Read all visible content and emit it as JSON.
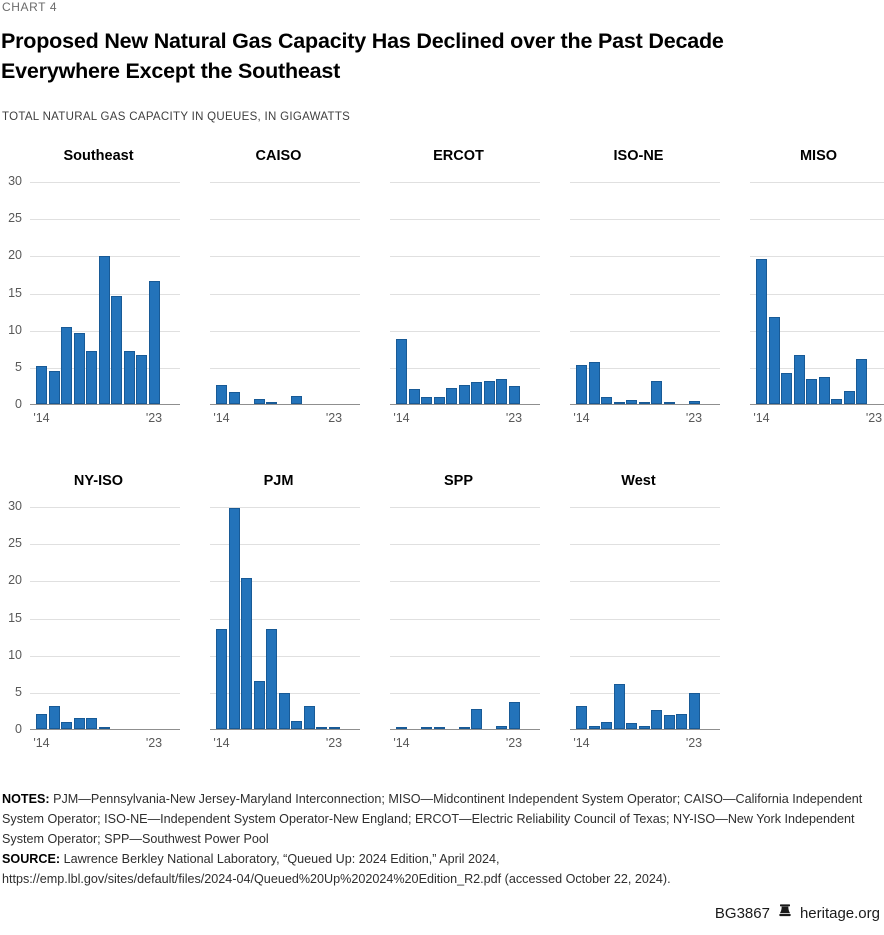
{
  "page": {
    "chart_label": "CHART 4",
    "title_line1": "Proposed New Natural Gas Capacity Has Declined over the Past Decade",
    "title_line2": "Everywhere Except the Southeast",
    "subtitle": "TOTAL NATURAL GAS CAPACITY IN QUEUES, IN GIGAWATTS",
    "notes_label": "NOTES:",
    "notes_text": "PJM—Pennsylvania-New Jersey-Maryland Interconnection; MISO—Midcontinent Independent System Operator; CAISO—California Independent System Operator; ISO-NE—Independent System Operator-New England; ERCOT—Electric Reliability Council of Texas; NY-ISO—New York Independent System Operator; SPP—Southwest Power Pool",
    "source_label": "SOURCE:",
    "source_line1": "Lawrence Berkley National Laboratory, “Queued Up: 2024 Edition,” April 2024,",
    "source_line2": "https://emp.lbl.gov/sites/default/files/2024-04/Queued%20Up%202024%20Edition_R2.pdf (accessed October 22, 2024).",
    "footer_id": "BG3867",
    "footer_site": "heritage.org",
    "footer_icon": "liberty-bell-icon"
  },
  "chart_data": {
    "type": "bar",
    "title": "Proposed New Natural Gas Capacity Has Declined over the Past Decade Everywhere Except the Southeast",
    "subtitle": "Total natural gas capacity in queues, in gigawatts",
    "units": "GW",
    "x": [
      2014,
      2015,
      2016,
      2017,
      2018,
      2019,
      2020,
      2021,
      2022,
      2023
    ],
    "x_tick_labels": [
      "'14",
      "'23"
    ],
    "ylim": [
      0,
      30
    ],
    "yticks": [
      30,
      25,
      20,
      15,
      10,
      5,
      0
    ],
    "grid": true,
    "legend": "none",
    "layout": "small-multiples, 5 panels top row, 4 panels bottom row",
    "bar_color": "#2373BA",
    "panels": [
      {
        "name": "Southeast",
        "values": [
          5.1,
          4.5,
          10.4,
          9.6,
          7.1,
          19.9,
          14.5,
          7.1,
          6.6,
          16.5
        ]
      },
      {
        "name": "CAISO",
        "values": [
          2.6,
          1.6,
          0,
          0.7,
          0.2,
          0,
          1.1,
          0,
          0,
          0
        ]
      },
      {
        "name": "ERCOT",
        "values": [
          8.7,
          2.0,
          1.0,
          0.9,
          2.2,
          2.5,
          2.9,
          3.1,
          3.3,
          2.4
        ]
      },
      {
        "name": "ISO-NE",
        "values": [
          5.2,
          5.6,
          0.9,
          0.1,
          0.6,
          0.15,
          3.1,
          0.1,
          0,
          0.4
        ]
      },
      {
        "name": "MISO",
        "values": [
          19.5,
          11.7,
          4.2,
          6.6,
          3.3,
          3.7,
          0.7,
          1.8,
          6.0,
          0
        ]
      },
      {
        "name": "NY-ISO",
        "values": [
          2.0,
          3.1,
          1.0,
          1.5,
          1.5,
          0.2,
          0,
          0,
          0,
          0
        ]
      },
      {
        "name": "PJM",
        "values": [
          13.4,
          29.7,
          20.3,
          6.4,
          13.4,
          4.9,
          1.1,
          3.1,
          0.2,
          0.1
        ]
      },
      {
        "name": "SPP",
        "values": [
          0.1,
          0,
          0.15,
          0.1,
          0,
          0.1,
          2.7,
          0,
          0.4,
          3.7
        ]
      },
      {
        "name": "West",
        "values": [
          3.1,
          0.4,
          0.9,
          6.0,
          0.8,
          0.4,
          2.6,
          1.9,
          2.0,
          4.8
        ]
      }
    ]
  }
}
